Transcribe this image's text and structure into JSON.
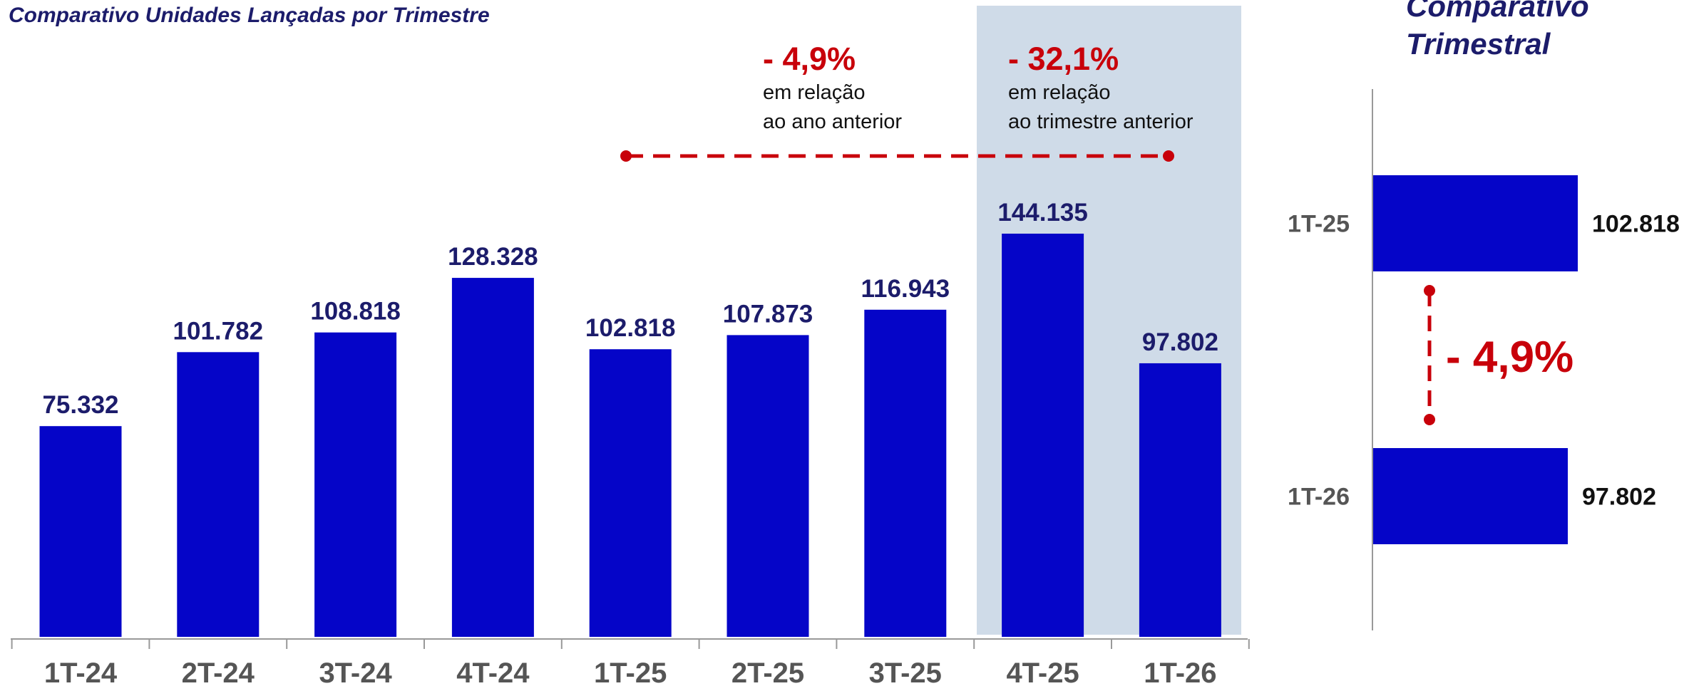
{
  "chart_data": [
    {
      "type": "bar",
      "title": "Comparativo Unidades Lançadas por Trimestre",
      "categories": [
        "1T-24",
        "2T-24",
        "3T-24",
        "4T-24",
        "1T-25",
        "2T-25",
        "3T-25",
        "4T-25",
        "1T-26"
      ],
      "values": [
        75332,
        101782,
        108818,
        128328,
        102818,
        107873,
        116943,
        144135,
        97802
      ],
      "value_labels": [
        "75.332",
        "101.782",
        "108.818",
        "128.328",
        "102.818",
        "107.873",
        "116.943",
        "144.135",
        "97.802"
      ],
      "color": "#0505c8",
      "annotations": [
        {
          "value": -4.9,
          "label": "- 4,9%",
          "text": [
            "em relação",
            "ao ano anterior"
          ]
        },
        {
          "value": -32.1,
          "label": "- 32,1%",
          "text": [
            "em relação",
            "ao trimestre anterior"
          ]
        }
      ]
    },
    {
      "type": "hbar",
      "title": [
        "Comparativo",
        "Trimestral"
      ],
      "categories": [
        "1T-25",
        "1T-26"
      ],
      "values": [
        102818,
        97802
      ],
      "value_labels": [
        "102.818",
        "97.802"
      ],
      "color": "#0505c8",
      "annotation": {
        "value": -4.9,
        "label": "- 4,9%"
      }
    }
  ]
}
